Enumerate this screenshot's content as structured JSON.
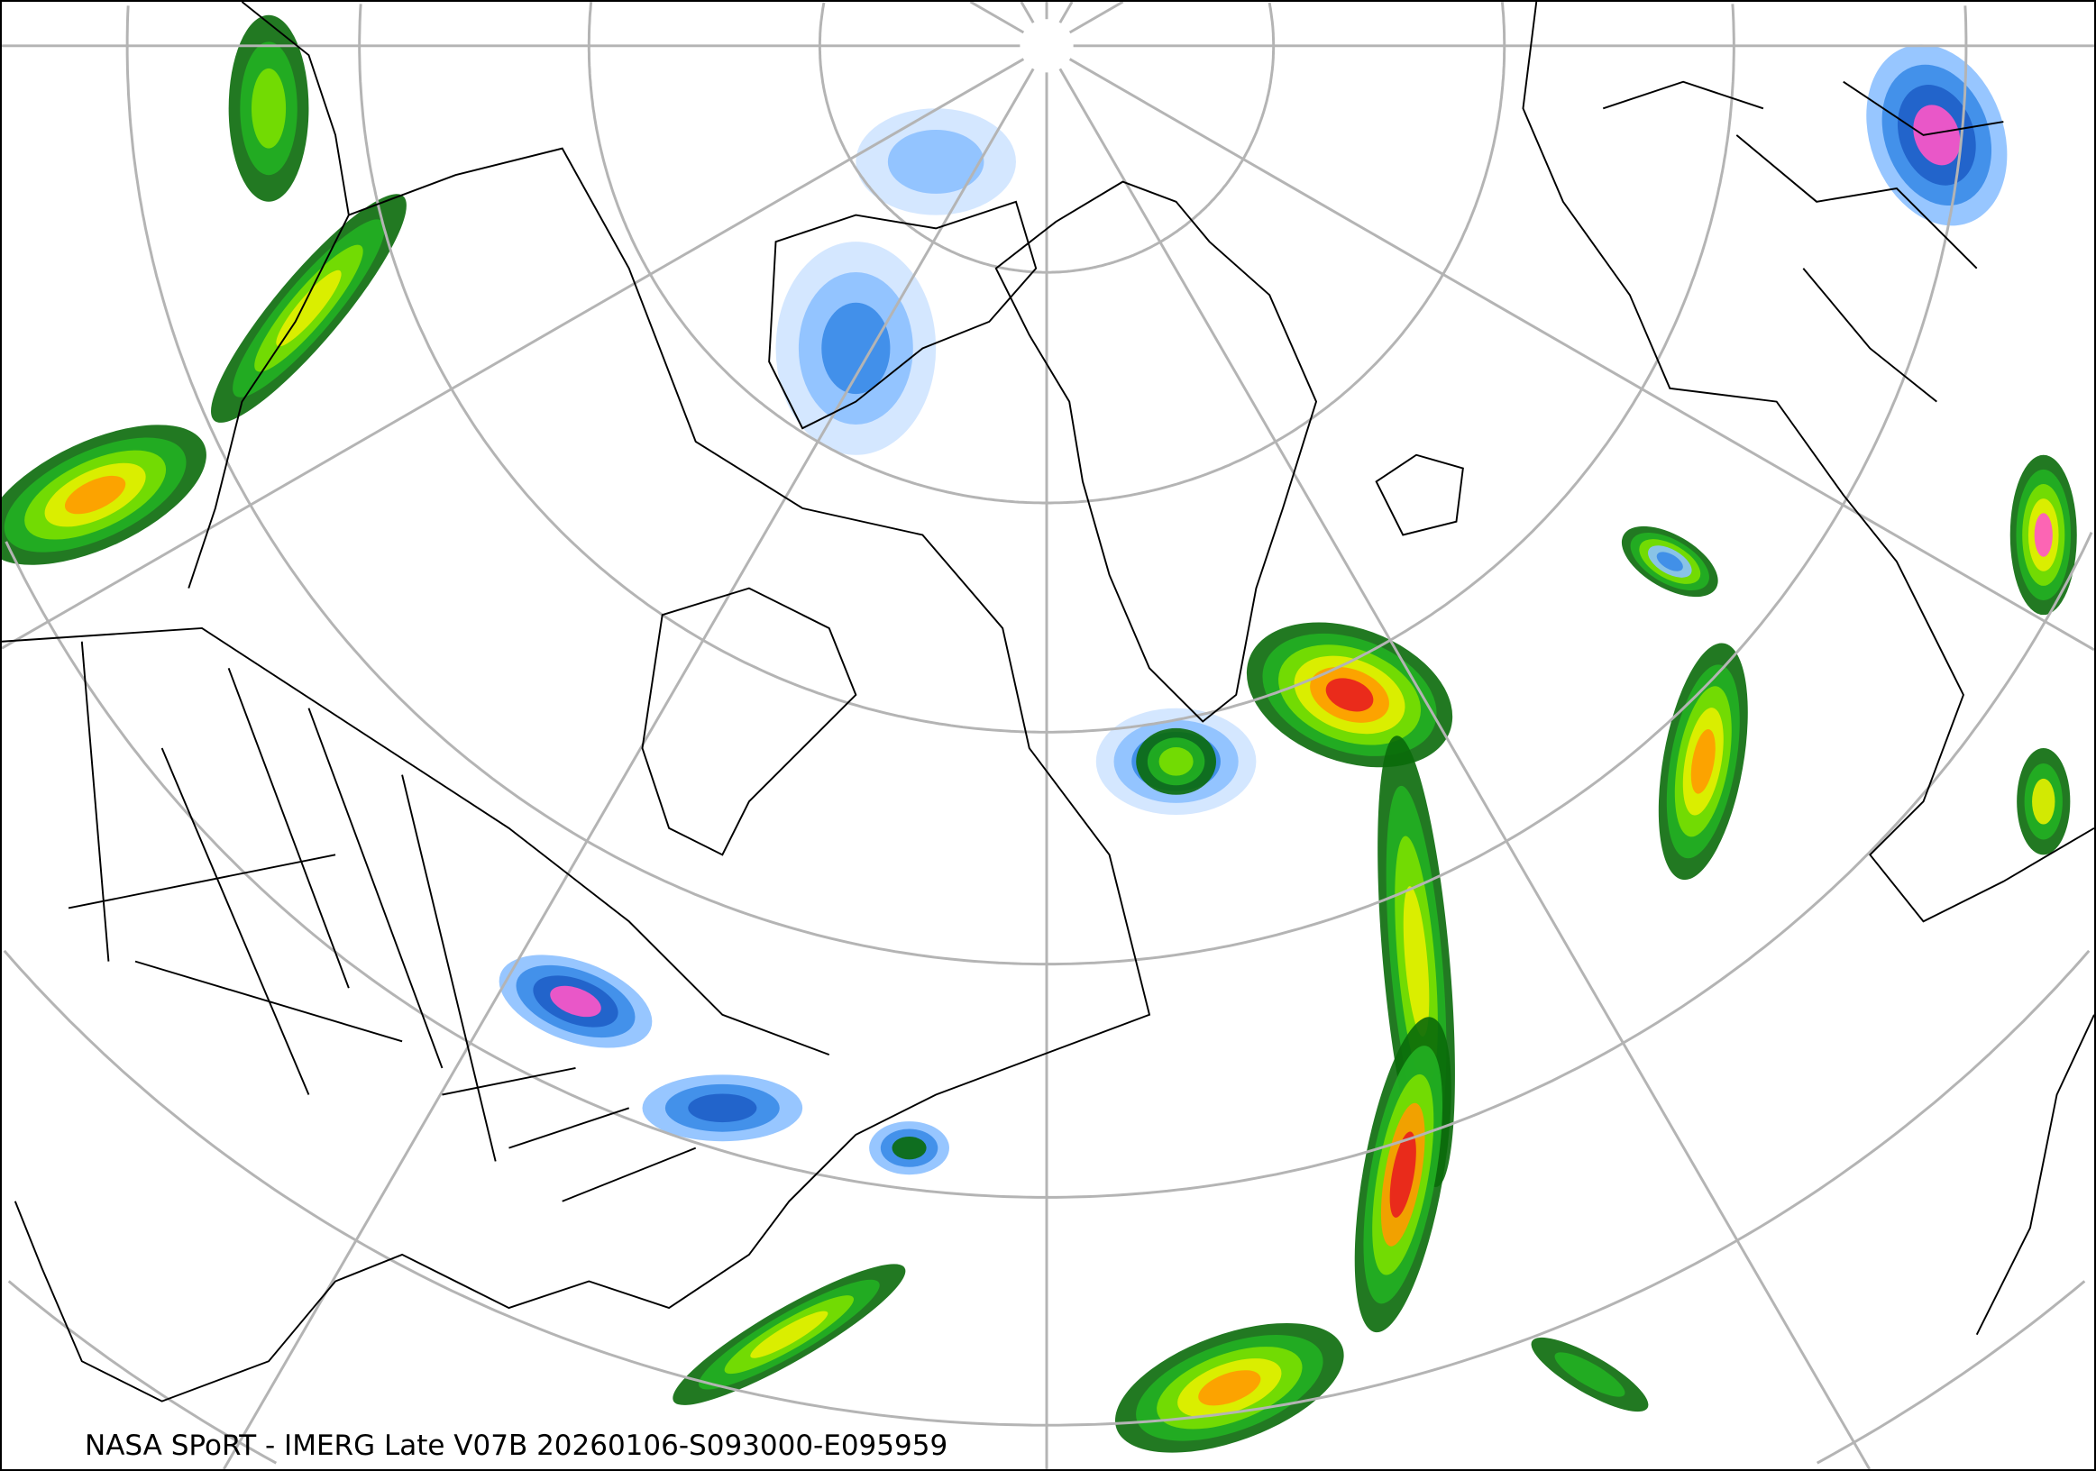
{
  "caption": "NASA SPoRT - IMERG Late V07B 20260106-S093000-E095959",
  "projection": "north-polar stereographic",
  "graticule_color": "#b4b4b4",
  "coastline_color": "#000000",
  "precip_colors": [
    "#cfe4ff",
    "#8cc0ff",
    "#3a8be8",
    "#1f5fc8",
    "#0a6a0a",
    "#22b022",
    "#7be000",
    "#e6f000",
    "#ff9a00",
    "#e81e1e",
    "#ff55c8"
  ]
}
